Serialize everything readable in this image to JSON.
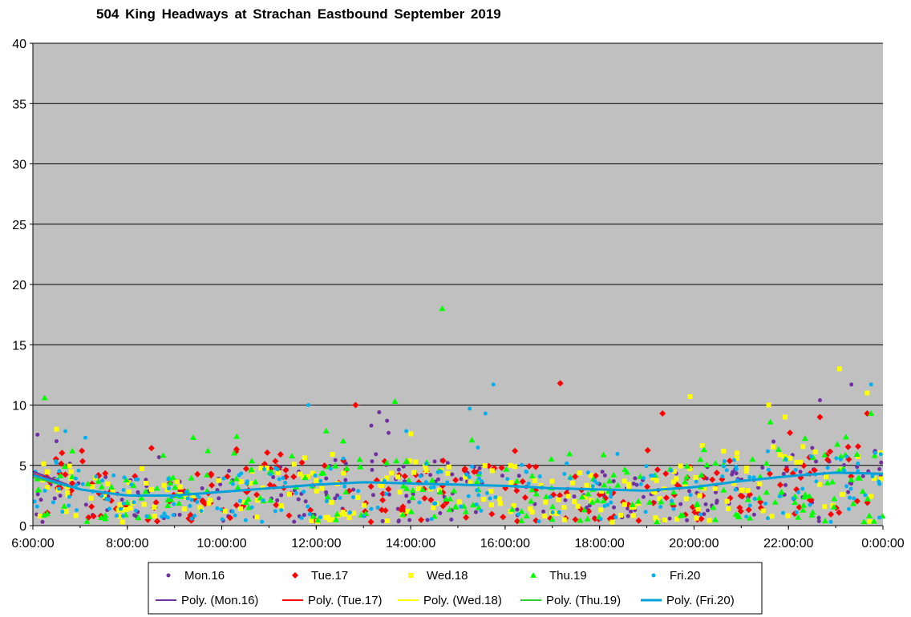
{
  "chart_data": {
    "type": "scatter",
    "title": "504 King Headways at Strachan Eastbound September 2019",
    "xlabel": "",
    "ylabel": "",
    "xlim": [
      "6:00:00",
      "0:00:00"
    ],
    "ylim": [
      0,
      40
    ],
    "x_tick_labels": [
      "6:00:00",
      "8:00:00",
      "10:00:00",
      "12:00:00",
      "14:00:00",
      "16:00:00",
      "18:00:00",
      "20:00:00",
      "22:00:00",
      "0:00:00"
    ],
    "y_tick_labels": [
      "0",
      "5",
      "10",
      "15",
      "20",
      "25",
      "30",
      "35",
      "40"
    ],
    "grid": "horizontal major gridlines",
    "plot_background": "#c0c0c0",
    "legend_position": "bottom",
    "series": [
      {
        "name": "Mon.16",
        "marker": "circle",
        "color": "#7030a0",
        "outliers": [
          [
            "6:30",
            7.0
          ],
          [
            "13:10",
            8.3
          ],
          [
            "13:20",
            9.4
          ],
          [
            "13:30",
            8.7
          ],
          [
            "22:40",
            10.4
          ],
          [
            "23:20",
            11.7
          ],
          [
            "23:50",
            6.2
          ]
        ]
      },
      {
        "name": "Tue.17",
        "marker": "diamond",
        "color": "#ff0000",
        "outliers": [
          [
            "12:50",
            10.0
          ],
          [
            "17:10",
            11.8
          ],
          [
            "19:20",
            9.3
          ],
          [
            "22:40",
            9.0
          ],
          [
            "23:40",
            9.3
          ]
        ]
      },
      {
        "name": "Wed.18",
        "marker": "square",
        "color": "#ffff00",
        "outliers": [
          [
            "6:30",
            8.0
          ],
          [
            "19:55",
            10.7
          ],
          [
            "21:35",
            10.0
          ],
          [
            "23:05",
            13.0
          ],
          [
            "23:40",
            11.0
          ]
        ]
      },
      {
        "name": "Thu.19",
        "marker": "triangle",
        "color": "#00ff00",
        "outliers": [
          [
            "6:15",
            10.6
          ],
          [
            "13:40",
            10.3
          ],
          [
            "14:40",
            18.0
          ],
          [
            "23:45",
            9.3
          ]
        ]
      },
      {
        "name": "Fri.20",
        "marker": "circle",
        "color": "#00b0f0",
        "outliers": [
          [
            "11:50",
            10.0
          ],
          [
            "15:15",
            9.7
          ],
          [
            "15:45",
            11.7
          ],
          [
            "15:35",
            9.3
          ],
          [
            "23:45",
            11.7
          ]
        ]
      }
    ],
    "trendlines": [
      {
        "name": "Poly. (Mon.16)",
        "color": "#7030a0"
      },
      {
        "name": "Poly. (Tue.17)",
        "color": "#ff0000"
      },
      {
        "name": "Poly. (Wed.18)",
        "color": "#ffff00"
      },
      {
        "name": "Poly. (Thu.19)",
        "color": "#33cc33"
      },
      {
        "name": "Poly. (Fri.20)",
        "color": "#00a0d8"
      }
    ],
    "trend_points": [
      [
        "6:00",
        4.2
      ],
      [
        "7:00",
        3.0
      ],
      [
        "8:00",
        2.5
      ],
      [
        "9:00",
        2.5
      ],
      [
        "10:00",
        2.8
      ],
      [
        "11:00",
        3.1
      ],
      [
        "12:00",
        3.4
      ],
      [
        "13:00",
        3.6
      ],
      [
        "14:00",
        3.5
      ],
      [
        "15:00",
        3.4
      ],
      [
        "16:00",
        3.3
      ],
      [
        "17:00",
        3.1
      ],
      [
        "18:00",
        3.0
      ],
      [
        "19:00",
        2.9
      ],
      [
        "20:00",
        3.2
      ],
      [
        "21:00",
        3.7
      ],
      [
        "22:00",
        4.1
      ],
      [
        "23:00",
        4.4
      ],
      [
        "0:00",
        4.3
      ]
    ]
  }
}
